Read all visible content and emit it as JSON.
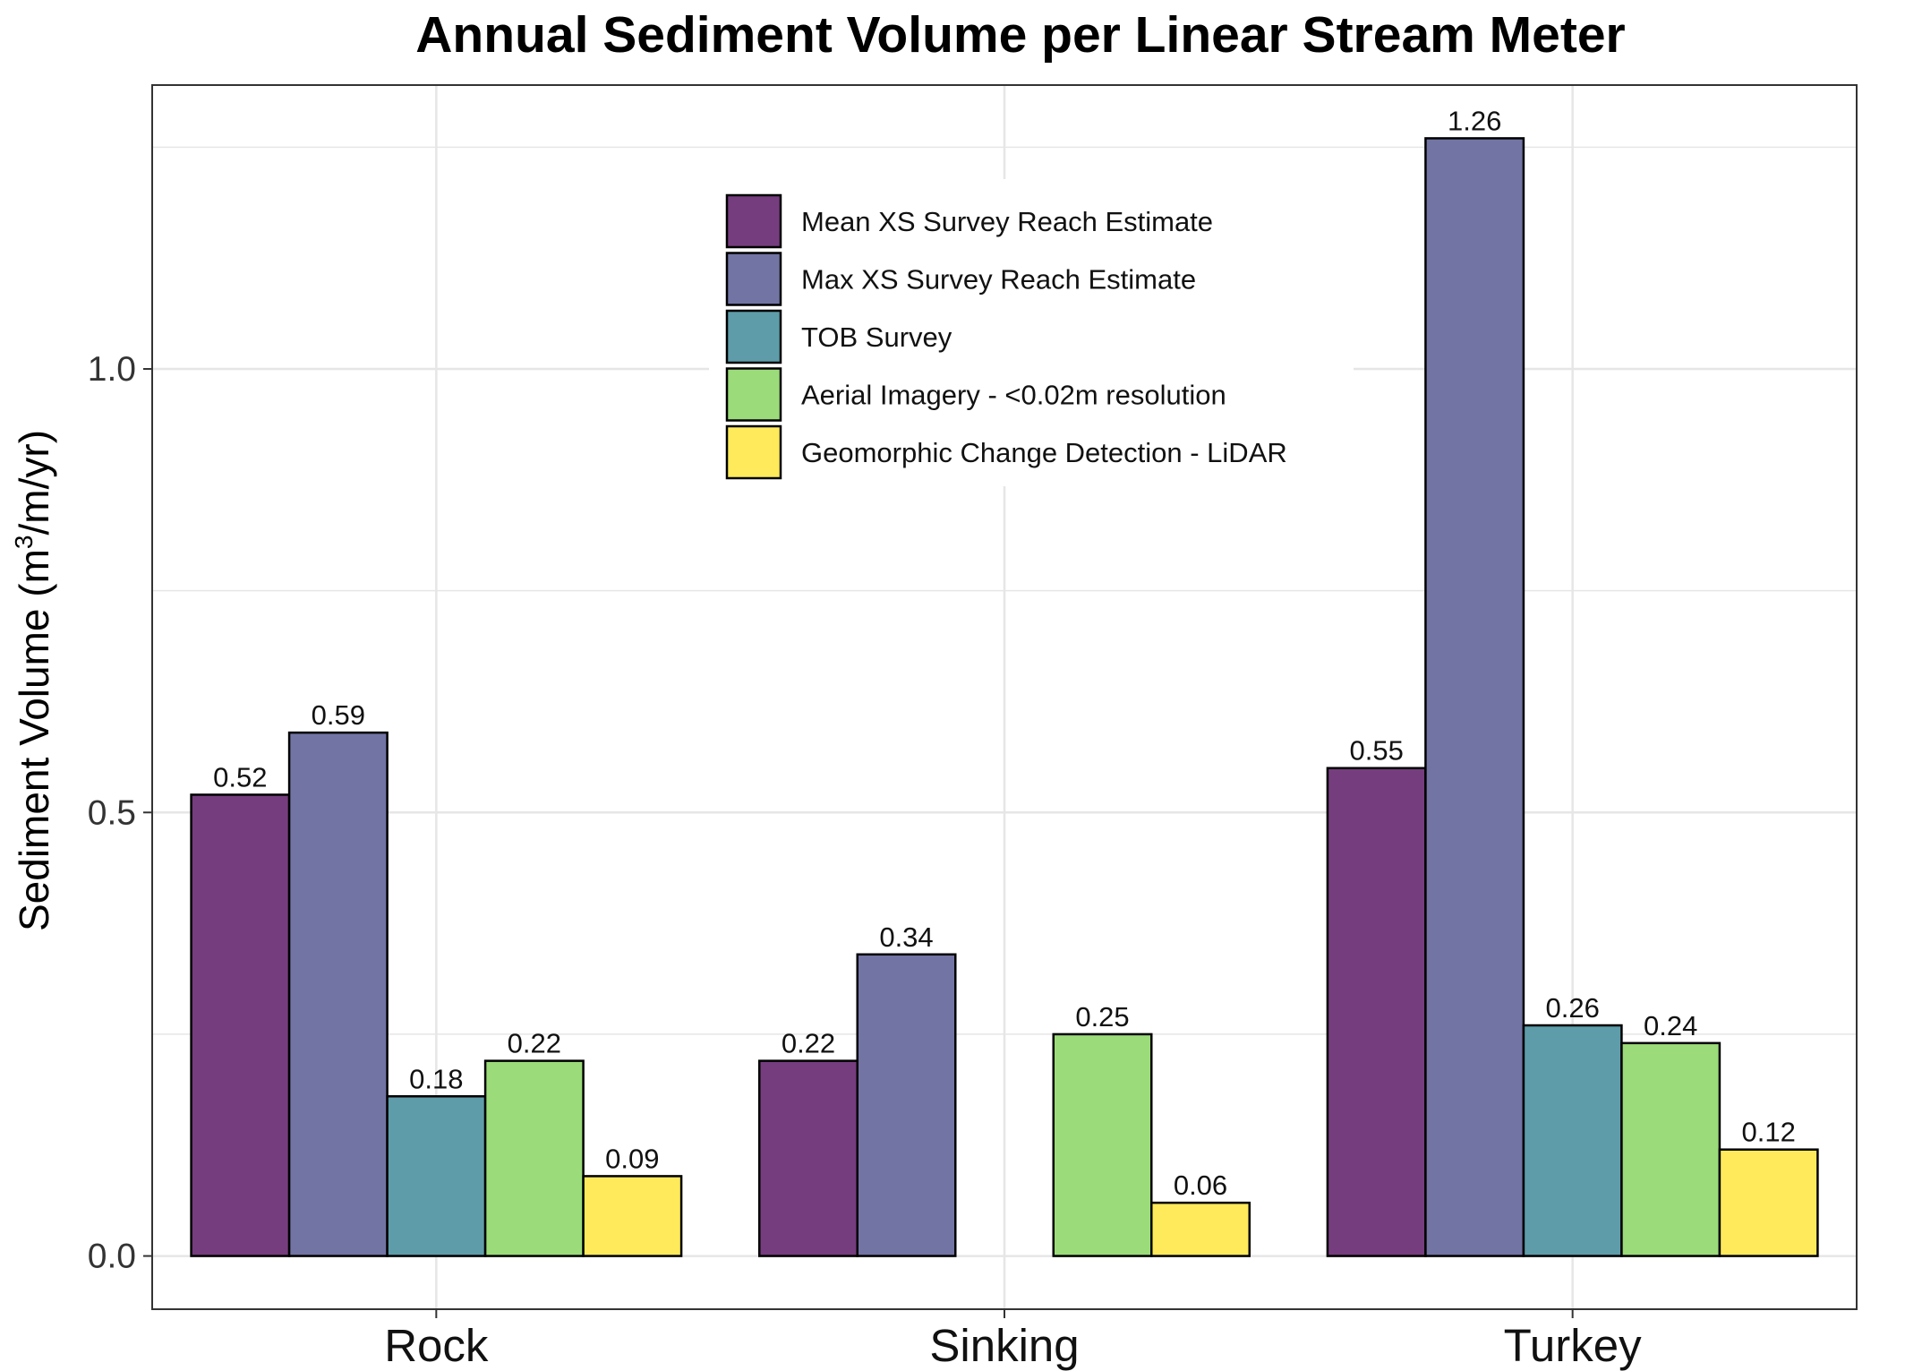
{
  "chart_data": {
    "type": "bar",
    "title": "Annual Sediment Volume per Linear Stream Meter",
    "ylabel": {
      "pre": "Sediment Volume (m",
      "sup": "3",
      "post": "/m/yr)"
    },
    "xlabel": "",
    "categories": [
      "Rock",
      "Sinking",
      "Turkey"
    ],
    "ylim": [
      -0.06,
      1.32
    ],
    "yticks": [
      0.0,
      0.5,
      1.0
    ],
    "ytick_labels": [
      "0.0",
      "0.5",
      "1.0"
    ],
    "grid": true,
    "legend_position": "top-center",
    "series": [
      {
        "name": "Mean XS Survey Reach Estimate",
        "color": "#753D7E",
        "values": [
          0.52,
          0.22,
          0.55
        ],
        "labels": [
          "0.52",
          "0.22",
          "0.55"
        ]
      },
      {
        "name": "Max XS Survey Reach Estimate",
        "color": "#7274A4",
        "values": [
          0.59,
          0.34,
          1.26
        ],
        "labels": [
          "0.59",
          "0.34",
          "1.26"
        ]
      },
      {
        "name": "TOB Survey",
        "color": "#5E9CA9",
        "values": [
          0.18,
          null,
          0.26
        ],
        "labels": [
          "0.18",
          null,
          "0.26"
        ]
      },
      {
        "name": "Aerial Imagery - <0.02m resolution",
        "color": "#9BDB7A",
        "values": [
          0.22,
          0.25,
          0.24
        ],
        "labels": [
          "0.22",
          "0.25",
          "0.24"
        ]
      },
      {
        "name": "Geomorphic Change Detection - LiDAR",
        "color": "#FEEA5A",
        "values": [
          0.09,
          0.06,
          0.12
        ],
        "labels": [
          "0.09",
          "0.06",
          "0.12"
        ]
      }
    ]
  }
}
